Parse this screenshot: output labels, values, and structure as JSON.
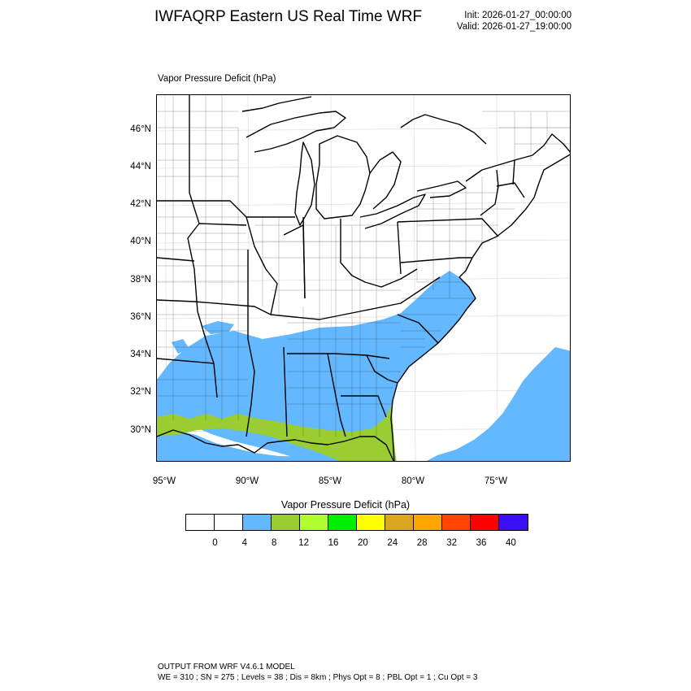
{
  "header": {
    "title": "IWFAQRP Eastern US Real Time WRF",
    "init": "Init: 2026-01-27_00:00:00",
    "valid": "Valid: 2026-01-27_19:00:00"
  },
  "field_label": "Vapor Pressure Deficit   (hPa)",
  "map": {
    "lat_labels": [
      "46°N",
      "44°N",
      "42°N",
      "40°N",
      "38°N",
      "36°N",
      "34°N",
      "32°N",
      "30°N"
    ],
    "lon_labels": [
      "95°W",
      "90°W",
      "85°W",
      "80°W",
      "75°W"
    ],
    "colors": {
      "land": "#ffffff",
      "boundary": "#000000",
      "county": "#000000",
      "vpd_4_8": "#63b8ff",
      "vpd_8_12": "#9acd32"
    }
  },
  "colorbar": {
    "title": "Vapor Pressure Deficit  (hPa)",
    "colors": [
      "#ffffff",
      "#ffffff",
      "#63b8ff",
      "#9acd32",
      "#adff2f",
      "#00ee00",
      "#ffff00",
      "#daa520",
      "#ffa500",
      "#ff4500",
      "#ff0000",
      "#3a0ff5"
    ],
    "ticks": [
      "0",
      "4",
      "8",
      "12",
      "16",
      "20",
      "24",
      "28",
      "32",
      "36",
      "40"
    ]
  },
  "footer": {
    "line1": "OUTPUT FROM WRF V4.6.1 MODEL",
    "line2": "WE = 310 ; SN = 275 ; Levels = 38 ; Dis = 8km ; Phys Opt = 8 ; PBL Opt = 1 ; Cu Opt = 3"
  }
}
